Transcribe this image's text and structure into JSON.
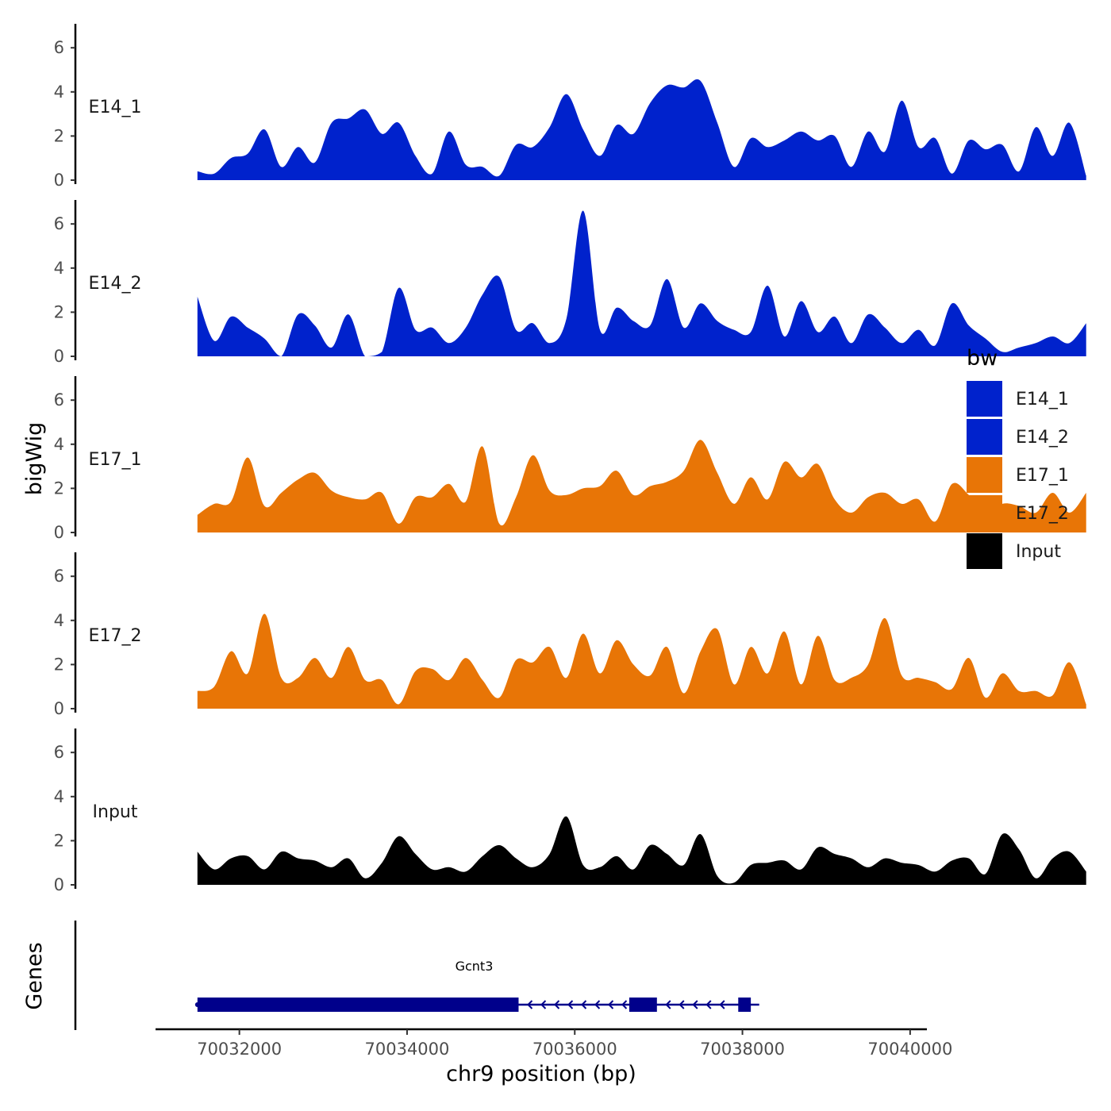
{
  "chart_data": {
    "type": "area",
    "title": "",
    "xlabel": "chr9 position (bp)",
    "ylabel": "bigWig",
    "genes_label": "Genes",
    "xlim": [
      70031000,
      70040200
    ],
    "x_ticks": [
      70032000,
      70034000,
      70036000,
      70038000,
      70040000
    ],
    "x_tick_labels": [
      "70032000",
      "70034000",
      "70036000",
      "70038000",
      "70040000"
    ],
    "ylim": [
      0,
      7
    ],
    "y_ticks": [
      0,
      2,
      4,
      6
    ],
    "y_tick_labels": [
      "0",
      "2",
      "4",
      "6"
    ],
    "legend": {
      "title": "bw",
      "position": "right",
      "entries": [
        {
          "name": "E14_1",
          "color": "#0022CC"
        },
        {
          "name": "E14_2",
          "color": "#0022CC"
        },
        {
          "name": "E17_1",
          "color": "#E87506"
        },
        {
          "name": "E17_2",
          "color": "#E87506"
        },
        {
          "name": "Input",
          "color": "#000000"
        }
      ]
    },
    "x_start": 70031500,
    "x_step": 200,
    "series": [
      {
        "name": "E14_1",
        "color": "#0022CC",
        "values": [
          0.4,
          0.3,
          1.0,
          1.2,
          2.3,
          0.6,
          1.5,
          0.8,
          2.6,
          2.8,
          3.2,
          2.1,
          2.6,
          1.1,
          0.3,
          2.2,
          0.7,
          0.6,
          0.2,
          1.6,
          1.5,
          2.4,
          3.9,
          2.3,
          1.1,
          2.5,
          2.1,
          3.5,
          4.3,
          4.2,
          4.5,
          2.6,
          0.6,
          1.9,
          1.5,
          1.8,
          2.2,
          1.8,
          2.0,
          0.6,
          2.2,
          1.3,
          3.6,
          1.5,
          1.9,
          0.3,
          1.8,
          1.4,
          1.6,
          0.4,
          2.4,
          1.1,
          2.6,
          0.2
        ]
      },
      {
        "name": "E14_2",
        "color": "#0022CC",
        "values": [
          2.7,
          0.7,
          1.8,
          1.3,
          0.8,
          0.0,
          1.9,
          1.4,
          0.4,
          1.9,
          0.0,
          0.2,
          3.1,
          1.2,
          1.3,
          0.6,
          1.3,
          2.8,
          3.6,
          1.2,
          1.5,
          0.6,
          1.7,
          6.6,
          1.2,
          2.2,
          1.6,
          1.4,
          3.5,
          1.3,
          2.4,
          1.6,
          1.2,
          1.1,
          3.2,
          0.9,
          2.5,
          1.1,
          1.8,
          0.6,
          1.9,
          1.3,
          0.6,
          1.2,
          0.5,
          2.4,
          1.4,
          0.8,
          0.2,
          0.4,
          0.6,
          0.9,
          0.6,
          1.5
        ]
      },
      {
        "name": "E17_1",
        "color": "#E87506",
        "values": [
          0.8,
          1.3,
          1.4,
          3.4,
          1.2,
          1.8,
          2.4,
          2.7,
          1.9,
          1.6,
          1.5,
          1.8,
          0.4,
          1.6,
          1.6,
          2.2,
          1.4,
          3.9,
          0.4,
          1.6,
          3.5,
          1.9,
          1.7,
          2.0,
          2.1,
          2.8,
          1.7,
          2.1,
          2.3,
          2.8,
          4.2,
          2.7,
          1.3,
          2.5,
          1.5,
          3.2,
          2.5,
          3.1,
          1.5,
          0.9,
          1.6,
          1.8,
          1.3,
          1.5,
          0.5,
          2.2,
          1.7,
          0.8,
          1.3,
          1.2,
          0.9,
          1.8,
          0.9,
          1.8
        ]
      },
      {
        "name": "E17_2",
        "color": "#E87506",
        "values": [
          0.8,
          1.0,
          2.6,
          1.6,
          4.3,
          1.4,
          1.4,
          2.3,
          1.4,
          2.8,
          1.3,
          1.3,
          0.2,
          1.7,
          1.8,
          1.3,
          2.3,
          1.3,
          0.5,
          2.2,
          2.1,
          2.8,
          1.4,
          3.4,
          1.6,
          3.1,
          2.0,
          1.5,
          2.8,
          0.7,
          2.6,
          3.6,
          1.1,
          2.8,
          1.6,
          3.5,
          1.1,
          3.3,
          1.3,
          1.4,
          2.0,
          4.1,
          1.5,
          1.4,
          1.2,
          0.9,
          2.3,
          0.5,
          1.6,
          0.8,
          0.8,
          0.6,
          2.1,
          0.2
        ]
      },
      {
        "name": "Input",
        "color": "#000000",
        "values": [
          1.5,
          0.7,
          1.2,
          1.3,
          0.7,
          1.5,
          1.2,
          1.1,
          0.8,
          1.2,
          0.3,
          1.0,
          2.2,
          1.4,
          0.7,
          0.8,
          0.6,
          1.3,
          1.8,
          1.2,
          0.8,
          1.4,
          3.1,
          0.9,
          0.8,
          1.3,
          0.7,
          1.8,
          1.4,
          0.9,
          2.3,
          0.4,
          0.1,
          0.9,
          1.0,
          1.1,
          0.7,
          1.7,
          1.4,
          1.2,
          0.8,
          1.2,
          1.0,
          0.9,
          0.6,
          1.1,
          1.2,
          0.5,
          2.3,
          1.6,
          0.3,
          1.2,
          1.5,
          0.6
        ]
      }
    ],
    "genes": [
      {
        "name": "Gcnt3",
        "strand": "-",
        "start": 70031500,
        "end": 70038200,
        "exons": [
          [
            70031500,
            70035330
          ],
          [
            70036650,
            70036980
          ],
          [
            70037950,
            70038100
          ]
        ],
        "color": "#00008B"
      }
    ]
  }
}
